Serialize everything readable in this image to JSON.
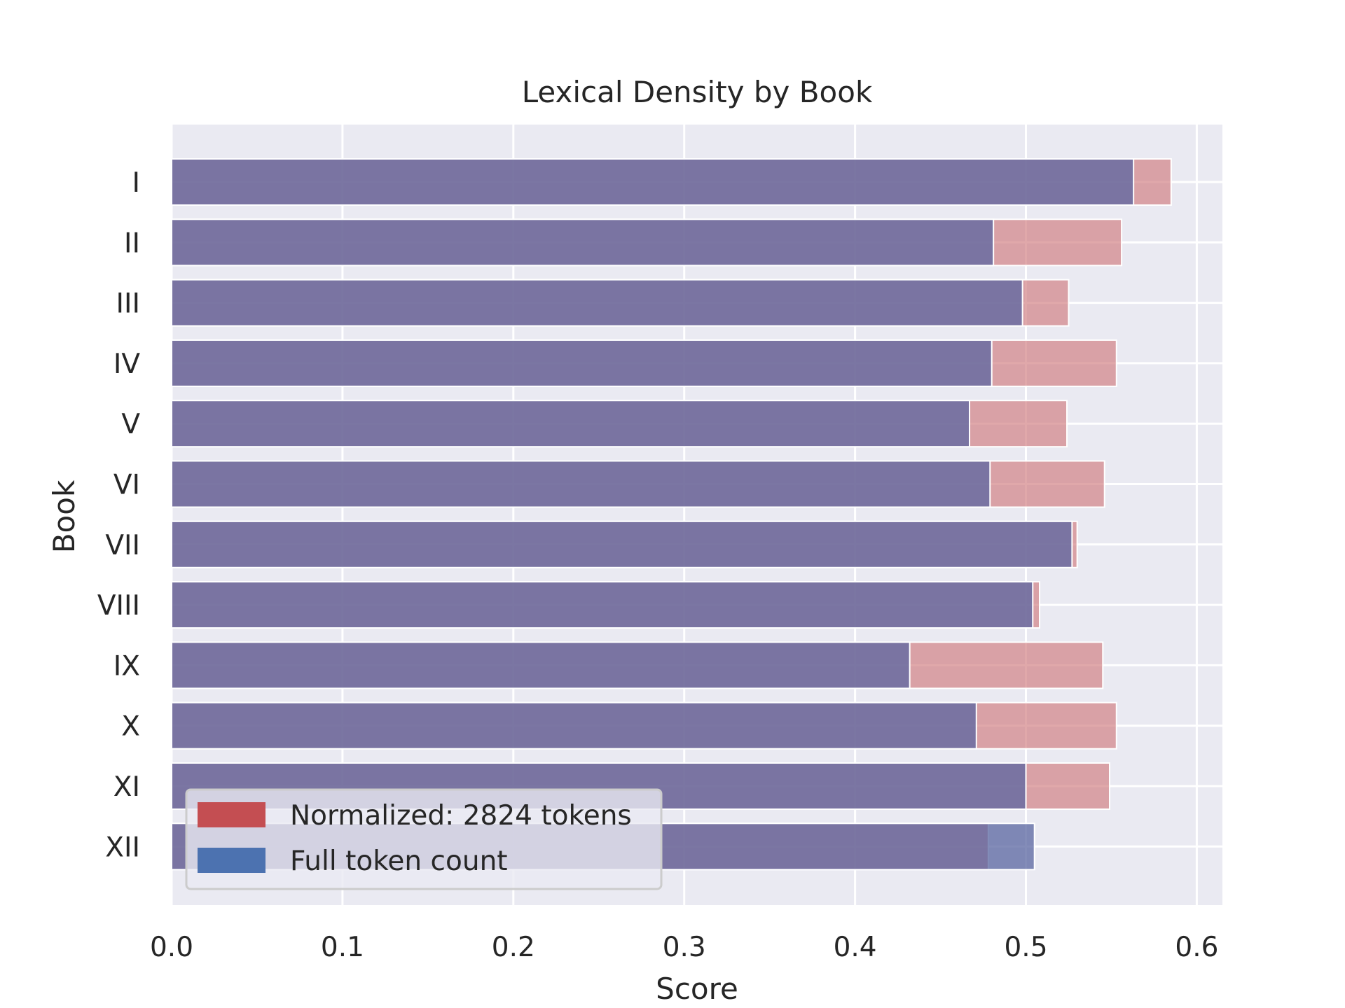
{
  "chart_data": {
    "type": "bar",
    "orientation": "horizontal",
    "title": "Lexical Density by Book",
    "xlabel": "Score",
    "ylabel": "Book",
    "xlim": [
      0.0,
      0.615
    ],
    "xticks": [
      "0.0",
      "0.1",
      "0.2",
      "0.3",
      "0.4",
      "0.5",
      "0.6"
    ],
    "xtick_values": [
      0.0,
      0.1,
      0.2,
      0.3,
      0.4,
      0.5,
      0.6
    ],
    "categories": [
      "I",
      "II",
      "III",
      "IV",
      "V",
      "VI",
      "VII",
      "VIII",
      "IX",
      "X",
      "XI",
      "XII"
    ],
    "series": [
      {
        "name": "Normalized: 2824 tokens",
        "color": "#c44e52",
        "values": [
          0.585,
          0.556,
          0.525,
          0.553,
          0.524,
          0.546,
          0.53,
          0.508,
          0.545,
          0.553,
          0.549,
          0.478
        ]
      },
      {
        "name": "Full token count",
        "color": "#4c72b0",
        "values": [
          0.563,
          0.481,
          0.498,
          0.48,
          0.467,
          0.479,
          0.527,
          0.504,
          0.432,
          0.471,
          0.5,
          0.505
        ]
      }
    ],
    "grid": true,
    "legend": "lower-left",
    "plot_background": "#eaeaf2"
  }
}
